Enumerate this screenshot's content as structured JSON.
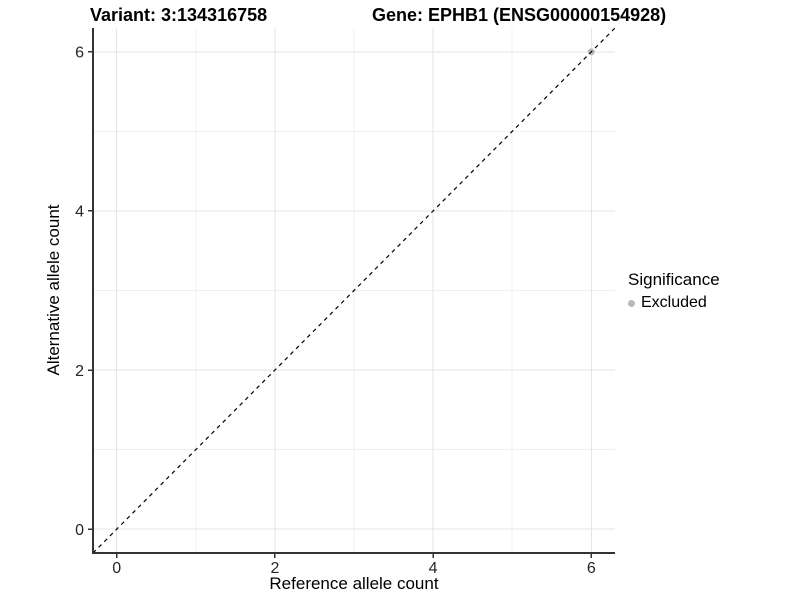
{
  "header": {
    "variant_title": "Variant: 3:134316758",
    "gene_title": "Gene: EPHB1 (ENSG00000154928)"
  },
  "legend": {
    "title": "Significance",
    "position": "right",
    "items": [
      {
        "label": "Excluded",
        "color": "#b9b9b9"
      }
    ]
  },
  "chart_data": {
    "type": "scatter",
    "title": "Variant: 3:134316758  |  Gene: EPHB1 (ENSG00000154928)",
    "xlabel": "Reference allele count",
    "ylabel": "Alternative allele count",
    "xlim": [
      -0.3,
      6.3
    ],
    "ylim": [
      -0.3,
      6.3
    ],
    "x_ticks": [
      0,
      2,
      4,
      6
    ],
    "y_ticks": [
      0,
      2,
      4,
      6
    ],
    "x_minor_ticks": [
      1,
      3,
      5
    ],
    "y_minor_ticks": [
      1,
      3,
      5
    ],
    "grid": "major-and-minor",
    "legend_position": "right",
    "series": [
      {
        "name": "Excluded",
        "color": "#b9b9b9",
        "points": [
          {
            "x": 6,
            "y": 6
          }
        ]
      }
    ],
    "reference_line": {
      "slope": 1,
      "intercept": 0,
      "style": "dashed",
      "color": "#000000"
    }
  }
}
